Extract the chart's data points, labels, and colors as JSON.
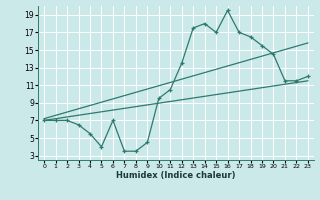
{
  "xlabel": "Humidex (Indice chaleur)",
  "bg_color": "#cce9e9",
  "grid_color": "#ffffff",
  "line_color": "#2d7a6e",
  "xlim": [
    -0.5,
    23.5
  ],
  "ylim": [
    2.5,
    20.0
  ],
  "xticks": [
    0,
    1,
    2,
    3,
    4,
    5,
    6,
    7,
    8,
    9,
    10,
    11,
    12,
    13,
    14,
    15,
    16,
    17,
    18,
    19,
    20,
    21,
    22,
    23
  ],
  "yticks": [
    3,
    5,
    7,
    9,
    11,
    13,
    15,
    17,
    19
  ],
  "main_x": [
    0,
    1,
    2,
    3,
    4,
    5,
    6,
    7,
    8,
    9,
    10,
    11,
    12,
    13,
    14,
    15,
    16,
    17,
    18,
    19,
    20,
    21,
    22,
    23
  ],
  "main_y": [
    7.0,
    7.0,
    7.0,
    6.5,
    5.5,
    4.0,
    7.0,
    3.5,
    3.5,
    4.5,
    9.5,
    10.5,
    13.5,
    17.5,
    18.0,
    17.0,
    19.5,
    17.0,
    16.5,
    15.5,
    14.5,
    11.5,
    11.5,
    12.0
  ],
  "trend1_x": [
    0,
    23
  ],
  "trend1_y": [
    7.0,
    11.5
  ],
  "trend2_x": [
    0,
    23
  ],
  "trend2_y": [
    7.2,
    15.8
  ]
}
